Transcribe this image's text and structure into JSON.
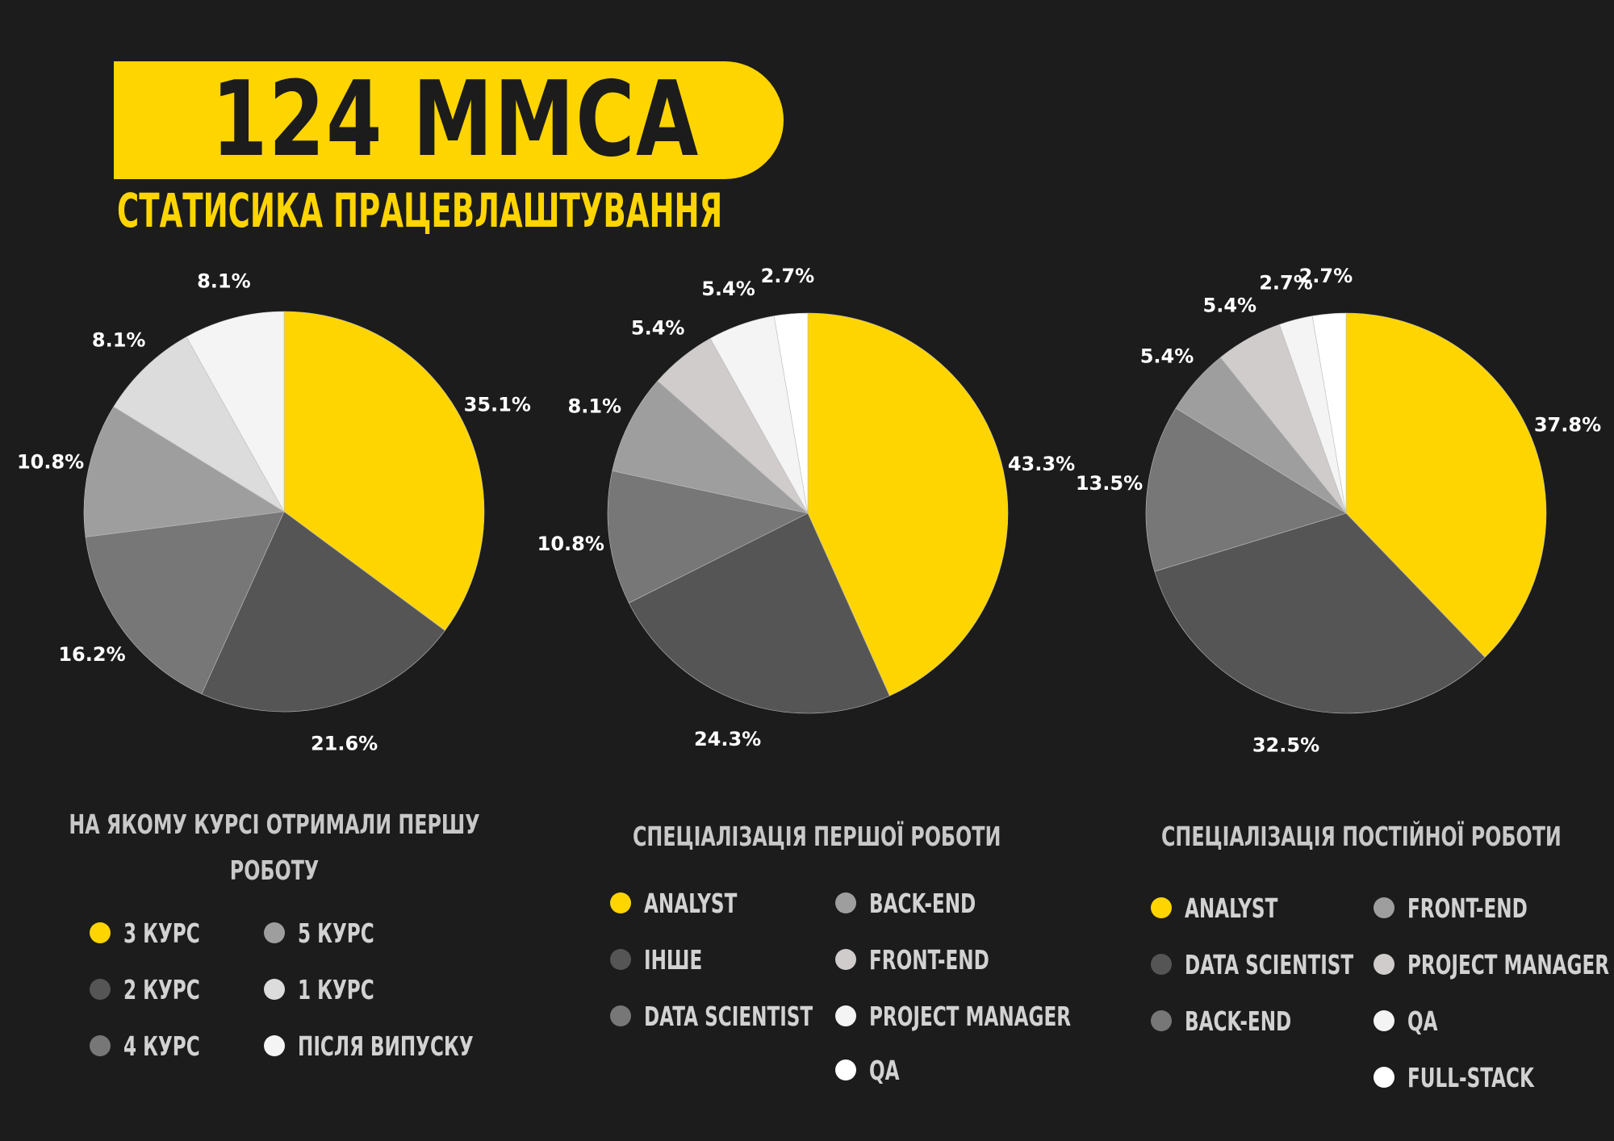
{
  "header": {
    "title": "124 ММСА",
    "subtitle": "СТАТИСИКА ПРАЦЕВЛАШТУВАННЯ"
  },
  "colors": {
    "background": "#1c1c1c",
    "accent": "#ffd500"
  },
  "chart_data": [
    {
      "type": "pie",
      "title": "НА ЯКОМУ КУРСІ ОТРИМАЛИ ПЕРШУ РОБОТУ",
      "categories": [
        "3 КУРС",
        "2 КУРС",
        "4 КУРС",
        "5 КУРС",
        "1 КУРС",
        "ПІСЛЯ ВИПУСКУ"
      ],
      "values": [
        35.1,
        21.6,
        16.2,
        10.8,
        8.1,
        8.1
      ],
      "labels": [
        "35.1%",
        "21.6%",
        "16.2%",
        "10.8%",
        "8.1%",
        "8.1%"
      ],
      "colors": [
        "#ffd500",
        "#555555",
        "#777777",
        "#9e9e9e",
        "#dcdcdc",
        "#f4f4f4"
      ],
      "legend_placement": "bottom"
    },
    {
      "type": "pie",
      "title": "СПЕЦІАЛІЗАЦІЯ ПЕРШОЇ РОБОТИ",
      "categories": [
        "ANALYST",
        "ІНШЕ",
        "DATA SCIENTIST",
        "BACK-END",
        "FRONT-END",
        "PROJECT MANAGER",
        "QA"
      ],
      "values": [
        43.3,
        24.3,
        10.8,
        8.1,
        5.4,
        5.4,
        2.7
      ],
      "labels": [
        "43.3%",
        "24.3%",
        "10.8%",
        "8.1%",
        "5.4%",
        "5.4%",
        "2.7%"
      ],
      "colors": [
        "#ffd500",
        "#555555",
        "#777777",
        "#9e9e9e",
        "#cfcccb",
        "#f4f4f4",
        "#ffffff"
      ],
      "legend_placement": "bottom"
    },
    {
      "type": "pie",
      "title": "СПЕЦІАЛІЗАЦІЯ ПОСТІЙНОЇ РОБОТИ",
      "categories": [
        "ANALYST",
        "DATA SCIENTIST",
        "BACK-END",
        "FRONT-END",
        "PROJECT MANAGER",
        "QA",
        "FULL-STACK"
      ],
      "values": [
        37.8,
        32.5,
        13.5,
        5.4,
        5.4,
        2.7,
        2.7
      ],
      "labels": [
        "37.8%",
        "32.5%",
        "13.5%",
        "5.4%",
        "5.4%",
        "2.7%",
        "2.7%"
      ],
      "colors": [
        "#ffd500",
        "#555555",
        "#777777",
        "#9e9e9e",
        "#cfcccb",
        "#f4f4f4",
        "#ffffff"
      ],
      "legend_placement": "bottom"
    }
  ]
}
